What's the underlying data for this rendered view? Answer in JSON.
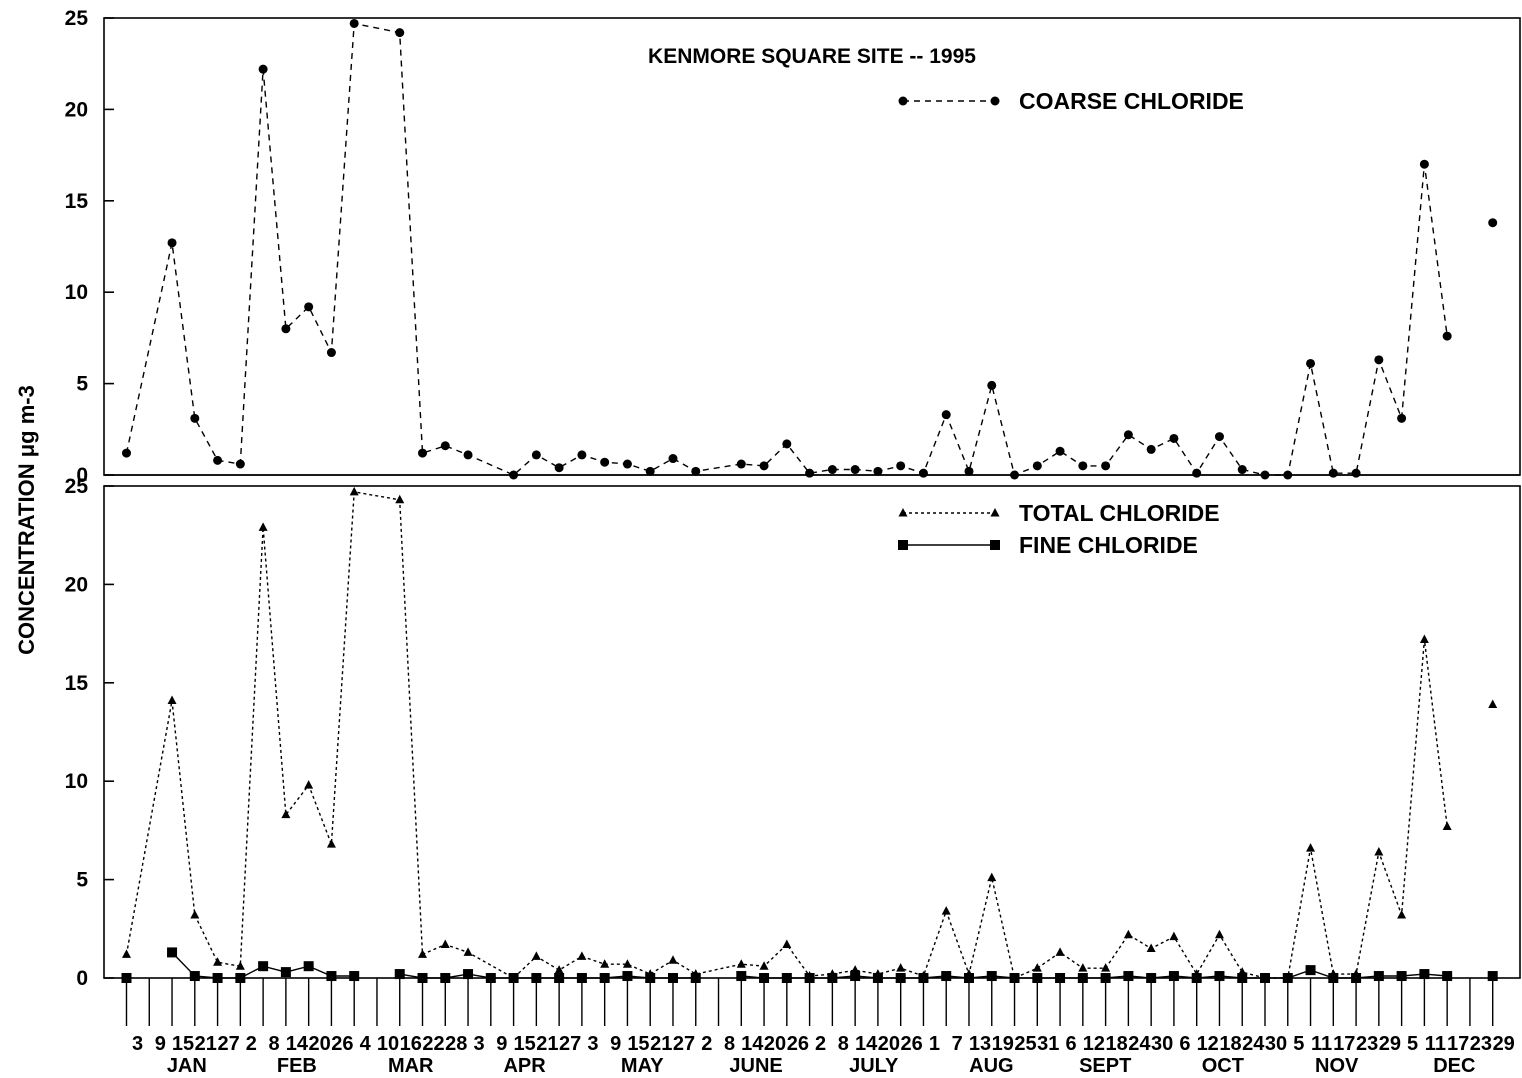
{
  "chart_data": [
    {
      "type": "line",
      "panel": "top",
      "title": "KENMORE SQUARE SITE -- 1995",
      "ylabel": "CONCENTRATION   μg m-3",
      "ylim": [
        0,
        25
      ],
      "yticks": [
        0,
        5,
        10,
        15,
        20,
        25
      ],
      "xlim": [
        "1995-01-03",
        "1995-12-29"
      ],
      "series": [
        {
          "name": "COARSE CHLORIDE",
          "line_style": "dashed",
          "marker": "circle",
          "color": "#000000",
          "points": [
            [
              "1995-01-03",
              1.2
            ],
            [
              "1995-01-15",
              12.7
            ],
            [
              "1995-01-21",
              3.1
            ],
            [
              "1995-01-27",
              0.8
            ],
            [
              "1995-02-02",
              0.6
            ],
            [
              "1995-02-08",
              22.2
            ],
            [
              "1995-02-14",
              8.0
            ],
            [
              "1995-02-20",
              9.2
            ],
            [
              "1995-02-26",
              6.7
            ],
            [
              "1995-03-04",
              24.7
            ],
            [
              "1995-03-16",
              24.2
            ],
            [
              "1995-03-22",
              1.2
            ],
            [
              "1995-03-28",
              1.6
            ],
            [
              "1995-04-03",
              1.1
            ],
            [
              "1995-04-15",
              0.0
            ],
            [
              "1995-04-21",
              1.1
            ],
            [
              "1995-04-27",
              0.4
            ],
            [
              "1995-05-03",
              1.1
            ],
            [
              "1995-05-09",
              0.7
            ],
            [
              "1995-05-15",
              0.6
            ],
            [
              "1995-05-21",
              0.2
            ],
            [
              "1995-05-27",
              0.9
            ],
            [
              "1995-06-02",
              0.2
            ],
            [
              "1995-06-14",
              0.6
            ],
            [
              "1995-06-20",
              0.5
            ],
            [
              "1995-06-26",
              1.7
            ],
            [
              "1995-07-02",
              0.1
            ],
            [
              "1995-07-08",
              0.3
            ],
            [
              "1995-07-14",
              0.3
            ],
            [
              "1995-07-20",
              0.2
            ],
            [
              "1995-07-26",
              0.5
            ],
            [
              "1995-08-01",
              0.1
            ],
            [
              "1995-08-07",
              3.3
            ],
            [
              "1995-08-13",
              0.2
            ],
            [
              "1995-08-19",
              4.9
            ],
            [
              "1995-08-25",
              0.0
            ],
            [
              "1995-08-31",
              0.5
            ],
            [
              "1995-09-06",
              1.3
            ],
            [
              "1995-09-12",
              0.5
            ],
            [
              "1995-09-18",
              0.5
            ],
            [
              "1995-09-24",
              2.2
            ],
            [
              "1995-09-30",
              1.4
            ],
            [
              "1995-10-06",
              2.0
            ],
            [
              "1995-10-12",
              0.1
            ],
            [
              "1995-10-18",
              2.1
            ],
            [
              "1995-10-24",
              0.3
            ],
            [
              "1995-10-30",
              0.0
            ],
            [
              "1995-11-05",
              0.0
            ],
            [
              "1995-11-11",
              6.1
            ],
            [
              "1995-11-17",
              0.1
            ],
            [
              "1995-11-23",
              0.1
            ],
            [
              "1995-11-29",
              6.3
            ],
            [
              "1995-12-05",
              3.1
            ],
            [
              "1995-12-11",
              17.0
            ],
            [
              "1995-12-17",
              7.6
            ],
            null,
            [
              "1995-12-29",
              13.8
            ]
          ]
        }
      ]
    },
    {
      "type": "line",
      "panel": "bottom",
      "ylim": [
        0,
        25
      ],
      "yticks": [
        0,
        5,
        10,
        15,
        20,
        25
      ],
      "series": [
        {
          "name": "TOTAL CHLORIDE",
          "line_style": "dotted",
          "marker": "triangle",
          "color": "#000000",
          "points": [
            [
              "1995-01-03",
              1.2
            ],
            [
              "1995-01-15",
              14.1
            ],
            [
              "1995-01-21",
              3.2
            ],
            [
              "1995-01-27",
              0.8
            ],
            [
              "1995-02-02",
              0.6
            ],
            [
              "1995-02-08",
              22.9
            ],
            [
              "1995-02-14",
              8.3
            ],
            [
              "1995-02-20",
              9.8
            ],
            [
              "1995-02-26",
              6.8
            ],
            [
              "1995-03-04",
              24.7
            ],
            [
              "1995-03-16",
              24.3
            ],
            [
              "1995-03-22",
              1.2
            ],
            [
              "1995-03-28",
              1.7
            ],
            [
              "1995-04-03",
              1.3
            ],
            [
              "1995-04-15",
              0.0
            ],
            [
              "1995-04-21",
              1.1
            ],
            [
              "1995-04-27",
              0.4
            ],
            [
              "1995-05-03",
              1.1
            ],
            [
              "1995-05-09",
              0.7
            ],
            [
              "1995-05-15",
              0.7
            ],
            [
              "1995-05-21",
              0.2
            ],
            [
              "1995-05-27",
              0.9
            ],
            [
              "1995-06-02",
              0.2
            ],
            [
              "1995-06-14",
              0.7
            ],
            [
              "1995-06-20",
              0.6
            ],
            [
              "1995-06-26",
              1.7
            ],
            [
              "1995-07-02",
              0.1
            ],
            [
              "1995-07-08",
              0.2
            ],
            [
              "1995-07-14",
              0.4
            ],
            [
              "1995-07-20",
              0.2
            ],
            [
              "1995-07-26",
              0.5
            ],
            [
              "1995-08-01",
              0.1
            ],
            [
              "1995-08-07",
              3.4
            ],
            [
              "1995-08-13",
              0.2
            ],
            [
              "1995-08-19",
              5.1
            ],
            [
              "1995-08-25",
              0.0
            ],
            [
              "1995-08-31",
              0.5
            ],
            [
              "1995-09-06",
              1.3
            ],
            [
              "1995-09-12",
              0.5
            ],
            [
              "1995-09-18",
              0.5
            ],
            [
              "1995-09-24",
              2.2
            ],
            [
              "1995-09-30",
              1.5
            ],
            [
              "1995-10-06",
              2.1
            ],
            [
              "1995-10-12",
              0.2
            ],
            [
              "1995-10-18",
              2.2
            ],
            [
              "1995-10-24",
              0.3
            ],
            [
              "1995-10-30",
              0.0
            ],
            [
              "1995-11-05",
              0.0
            ],
            [
              "1995-11-11",
              6.6
            ],
            [
              "1995-11-17",
              0.2
            ],
            [
              "1995-11-23",
              0.2
            ],
            [
              "1995-11-29",
              6.4
            ],
            [
              "1995-12-05",
              3.2
            ],
            [
              "1995-12-11",
              17.2
            ],
            [
              "1995-12-17",
              7.7
            ],
            null,
            [
              "1995-12-29",
              13.9
            ]
          ]
        },
        {
          "name": "FINE CHLORIDE",
          "line_style": "solid",
          "marker": "square",
          "color": "#000000",
          "points": [
            [
              "1995-01-03",
              0.0
            ],
            null,
            [
              "1995-01-15",
              1.3
            ],
            [
              "1995-01-21",
              0.1
            ],
            [
              "1995-01-27",
              0.0
            ],
            [
              "1995-02-02",
              0.0
            ],
            [
              "1995-02-08",
              0.6
            ],
            [
              "1995-02-14",
              0.3
            ],
            [
              "1995-02-20",
              0.6
            ],
            [
              "1995-02-26",
              0.1
            ],
            [
              "1995-03-04",
              0.1
            ],
            null,
            [
              "1995-03-16",
              0.2
            ],
            [
              "1995-03-22",
              0.0
            ],
            [
              "1995-03-28",
              0.0
            ],
            [
              "1995-04-03",
              0.2
            ],
            [
              "1995-04-09",
              0.0
            ],
            [
              "1995-04-15",
              0.0
            ],
            [
              "1995-04-21",
              0.0
            ],
            [
              "1995-04-27",
              0.0
            ],
            [
              "1995-05-03",
              0.0
            ],
            [
              "1995-05-09",
              0.0
            ],
            [
              "1995-05-15",
              0.1
            ],
            [
              "1995-05-21",
              0.0
            ],
            [
              "1995-05-27",
              0.0
            ],
            [
              "1995-06-02",
              0.0
            ],
            null,
            [
              "1995-06-14",
              0.1
            ],
            [
              "1995-06-20",
              0.0
            ],
            [
              "1995-06-26",
              0.0
            ],
            [
              "1995-07-02",
              0.0
            ],
            [
              "1995-07-08",
              0.0
            ],
            [
              "1995-07-14",
              0.1
            ],
            [
              "1995-07-20",
              0.0
            ],
            [
              "1995-07-26",
              0.0
            ],
            [
              "1995-08-01",
              0.0
            ],
            [
              "1995-08-07",
              0.1
            ],
            [
              "1995-08-13",
              0.0
            ],
            [
              "1995-08-19",
              0.1
            ],
            [
              "1995-08-25",
              0.0
            ],
            [
              "1995-08-31",
              0.0
            ],
            [
              "1995-09-06",
              0.0
            ],
            [
              "1995-09-12",
              0.0
            ],
            [
              "1995-09-18",
              0.0
            ],
            [
              "1995-09-24",
              0.1
            ],
            [
              "1995-09-30",
              0.0
            ],
            [
              "1995-10-06",
              0.1
            ],
            [
              "1995-10-12",
              0.0
            ],
            [
              "1995-10-18",
              0.1
            ],
            [
              "1995-10-24",
              0.0
            ],
            [
              "1995-10-30",
              0.0
            ],
            [
              "1995-11-05",
              0.0
            ],
            [
              "1995-11-11",
              0.4
            ],
            [
              "1995-11-17",
              0.0
            ],
            [
              "1995-11-23",
              0.0
            ],
            [
              "1995-11-29",
              0.1
            ],
            [
              "1995-12-05",
              0.1
            ],
            [
              "1995-12-11",
              0.2
            ],
            [
              "1995-12-17",
              0.1
            ],
            null,
            [
              "1995-12-29",
              0.1
            ]
          ]
        }
      ]
    }
  ],
  "x_axis": {
    "tick_labels": [
      [
        "1995-01-03",
        "3"
      ],
      [
        "1995-01-09",
        "9"
      ],
      [
        "1995-01-15",
        "15"
      ],
      [
        "1995-01-21",
        "21"
      ],
      [
        "1995-01-27",
        "27"
      ],
      [
        "1995-02-02",
        "2"
      ],
      [
        "1995-02-08",
        "8"
      ],
      [
        "1995-02-14",
        "14"
      ],
      [
        "1995-02-20",
        "20"
      ],
      [
        "1995-02-26",
        "26"
      ],
      [
        "1995-03-04",
        "4"
      ],
      [
        "1995-03-10",
        "10"
      ],
      [
        "1995-03-16",
        "16"
      ],
      [
        "1995-03-22",
        "22"
      ],
      [
        "1995-03-28",
        "28"
      ],
      [
        "1995-04-03",
        "3"
      ],
      [
        "1995-04-09",
        "9"
      ],
      [
        "1995-04-15",
        "15"
      ],
      [
        "1995-04-21",
        "21"
      ],
      [
        "1995-04-27",
        "27"
      ],
      [
        "1995-05-03",
        "3"
      ],
      [
        "1995-05-09",
        "9"
      ],
      [
        "1995-05-15",
        "15"
      ],
      [
        "1995-05-21",
        "21"
      ],
      [
        "1995-05-27",
        "27"
      ],
      [
        "1995-06-02",
        "2"
      ],
      [
        "1995-06-08",
        "8"
      ],
      [
        "1995-06-14",
        "14"
      ],
      [
        "1995-06-20",
        "20"
      ],
      [
        "1995-06-26",
        "26"
      ],
      [
        "1995-07-02",
        "2"
      ],
      [
        "1995-07-08",
        "8"
      ],
      [
        "1995-07-14",
        "14"
      ],
      [
        "1995-07-20",
        "20"
      ],
      [
        "1995-07-26",
        "26"
      ],
      [
        "1995-08-01",
        "1"
      ],
      [
        "1995-08-07",
        "7"
      ],
      [
        "1995-08-13",
        "13"
      ],
      [
        "1995-08-19",
        "19"
      ],
      [
        "1995-08-25",
        "25"
      ],
      [
        "1995-08-31",
        "31"
      ],
      [
        "1995-09-06",
        "6"
      ],
      [
        "1995-09-12",
        "12"
      ],
      [
        "1995-09-18",
        "18"
      ],
      [
        "1995-09-24",
        "24"
      ],
      [
        "1995-09-30",
        "30"
      ],
      [
        "1995-10-06",
        "6"
      ],
      [
        "1995-10-12",
        "12"
      ],
      [
        "1995-10-18",
        "18"
      ],
      [
        "1995-10-24",
        "24"
      ],
      [
        "1995-10-30",
        "30"
      ],
      [
        "1995-11-05",
        "5"
      ],
      [
        "1995-11-11",
        "11"
      ],
      [
        "1995-11-17",
        "17"
      ],
      [
        "1995-11-23",
        "23"
      ],
      [
        "1995-11-29",
        "29"
      ],
      [
        "1995-12-05",
        "5"
      ],
      [
        "1995-12-11",
        "11"
      ],
      [
        "1995-12-17",
        "17"
      ],
      [
        "1995-12-23",
        "23"
      ],
      [
        "1995-12-29",
        "29"
      ]
    ],
    "month_labels": [
      [
        "1995-01-16",
        "JAN"
      ],
      [
        "1995-02-14",
        "FEB"
      ],
      [
        "1995-03-16",
        "MAR"
      ],
      [
        "1995-04-15",
        "APR"
      ],
      [
        "1995-05-16",
        "MAY"
      ],
      [
        "1995-06-15",
        "JUNE"
      ],
      [
        "1995-07-16",
        "JULY"
      ],
      [
        "1995-08-16",
        "AUG"
      ],
      [
        "1995-09-15",
        "SEPT"
      ],
      [
        "1995-10-16",
        "OCT"
      ],
      [
        "1995-11-15",
        "NOV"
      ],
      [
        "1995-12-16",
        "DEC"
      ]
    ]
  }
}
